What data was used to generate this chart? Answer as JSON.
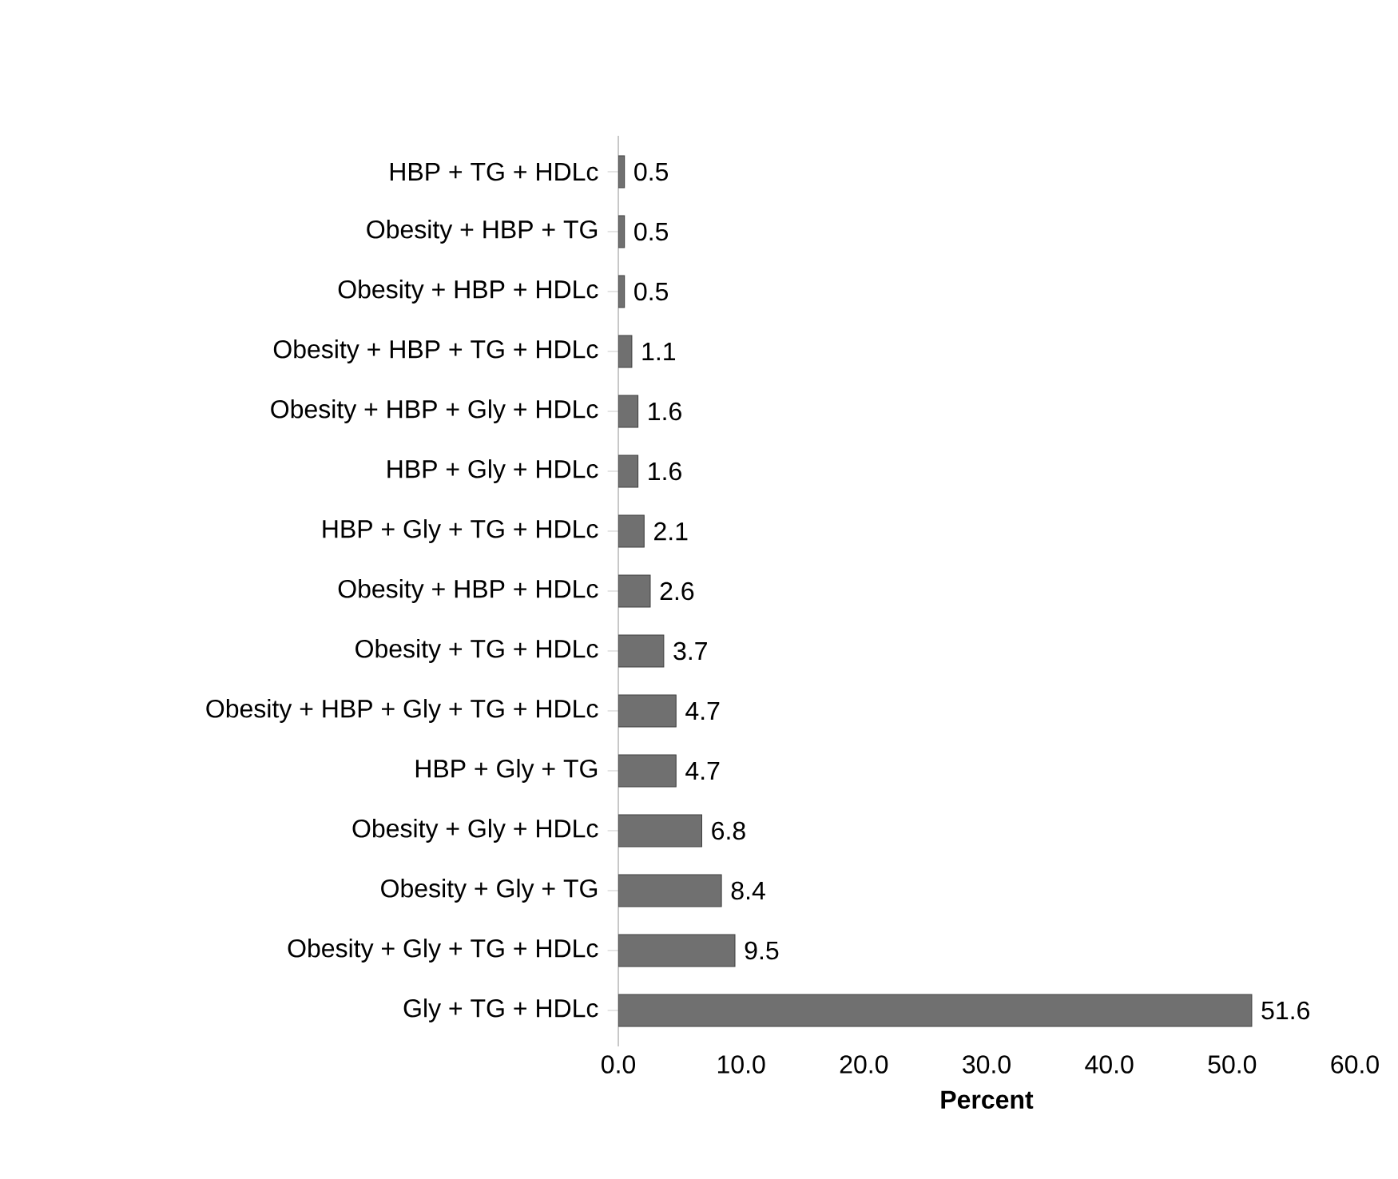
{
  "chart_data": {
    "type": "bar",
    "orientation": "horizontal",
    "xlabel": "Percent",
    "categories": [
      "HBP + TG + HDLc",
      "Obesity + HBP + TG",
      "Obesity + HBP + HDLc",
      "Obesity + HBP + TG + HDLc",
      "Obesity + HBP + Gly + HDLc",
      "HBP + Gly + HDLc",
      "HBP + Gly + TG + HDLc",
      "Obesity + HBP + HDLc",
      "Obesity + TG + HDLc",
      "Obesity + HBP + Gly + TG + HDLc",
      "HBP + Gly + TG",
      "Obesity + Gly + HDLc",
      "Obesity + Gly + TG",
      "Obesity + Gly + TG + HDLc",
      "Gly + TG + HDLc"
    ],
    "values": [
      0.5,
      0.5,
      0.5,
      1.1,
      1.6,
      1.6,
      2.1,
      2.6,
      3.7,
      4.7,
      4.7,
      6.8,
      8.4,
      9.5,
      51.6
    ],
    "color": "#404040",
    "xlim": [
      0,
      60
    ],
    "xticks": [
      {
        "value": 0,
        "label": "0.0"
      },
      {
        "value": 10,
        "label": "10.0"
      },
      {
        "value": 20,
        "label": "20.0"
      },
      {
        "value": 30,
        "label": "30.0"
      },
      {
        "value": 40,
        "label": "40.0"
      },
      {
        "value": 50,
        "label": "50.0"
      },
      {
        "value": 60,
        "label": "60.0"
      }
    ],
    "data_labels": true,
    "grid": false
  }
}
